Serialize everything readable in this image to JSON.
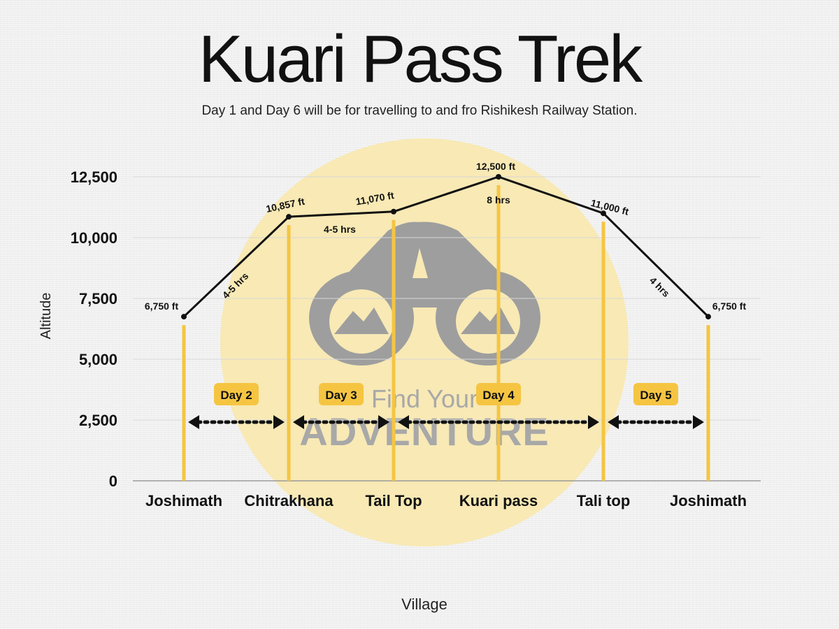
{
  "chart_data": {
    "type": "line",
    "title": "Kuari Pass Trek",
    "subtitle": "Day 1 and Day 6 will be for travelling to and fro Rishikesh Railway Station.",
    "xlabel": "Village",
    "ylabel": "Altitude",
    "ylim": [
      0,
      12500
    ],
    "yticks": [
      0,
      2500,
      5000,
      7500,
      10000,
      12500
    ],
    "ytick_labels": [
      "0",
      "2,500",
      "5,000",
      "7,500",
      "10,000",
      "12,500"
    ],
    "grid": true,
    "categories": [
      "Joshimath",
      "Chitrakhana",
      "Tail Top",
      "Kuari pass",
      "Tali top",
      "Joshimath"
    ],
    "series": [
      {
        "values": [
          6750,
          10857,
          11070,
          12500,
          11000,
          6750
        ],
        "point_labels": [
          "6,750 ft",
          "10,857 ft",
          "11,070 ft",
          "12,500 ft",
          "11,000 ft",
          "6,750 ft"
        ]
      }
    ],
    "segment_labels": [
      "4-5 hrs",
      "4-5 hrs",
      "",
      "8 hrs",
      "4 hrs"
    ],
    "days": [
      {
        "label": "Day 2",
        "from": 0,
        "to": 1
      },
      {
        "label": "Day 3",
        "from": 1,
        "to": 2
      },
      {
        "label": "Day 4",
        "from": 2,
        "to": 4
      },
      {
        "label": "Day 5",
        "from": 4,
        "to": 5
      }
    ],
    "colors": {
      "line": "#111111",
      "drop_line": "#f5c542",
      "day_badge": "#f5c542",
      "watermark_circle": "#f8e9b5",
      "watermark_logo": "#9e9e9e"
    }
  },
  "watermark": {
    "line1": "Find Your",
    "line2": "ADVENTURE",
    "icon": "binoculars-mountain-logo"
  }
}
